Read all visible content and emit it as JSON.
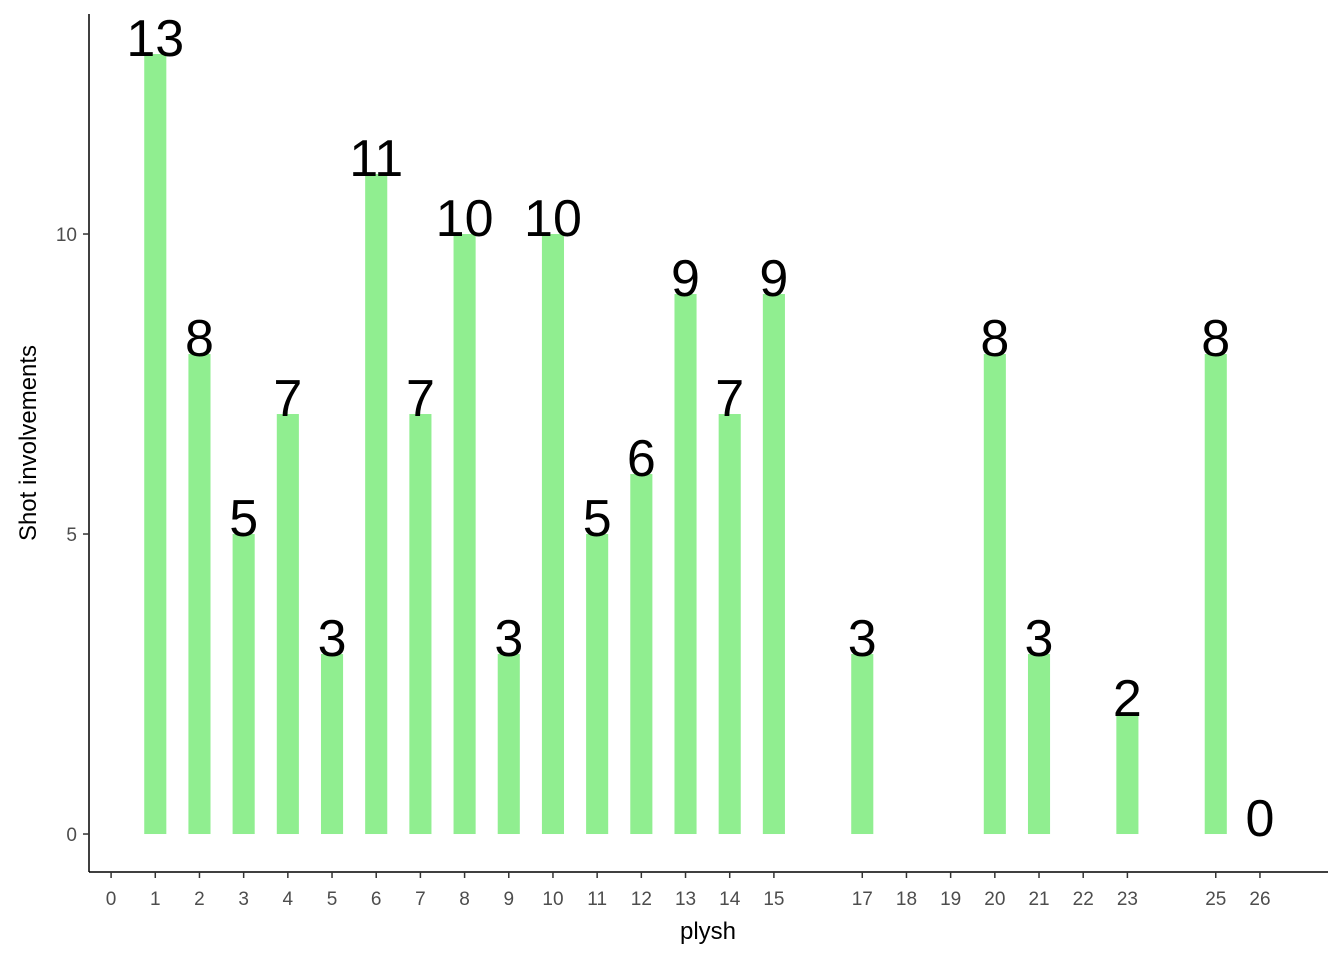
{
  "chart_data": {
    "type": "bar",
    "x_label": "plysh",
    "y_label": "Shot involvements",
    "x": [
      1,
      2,
      3,
      4,
      5,
      6,
      7,
      8,
      9,
      10,
      11,
      12,
      13,
      14,
      15,
      17,
      20,
      21,
      23,
      25,
      26
    ],
    "values": [
      13,
      8,
      5,
      7,
      3,
      11,
      7,
      10,
      3,
      10,
      5,
      6,
      9,
      7,
      9,
      3,
      8,
      3,
      2,
      8,
      0
    ],
    "color": "#90ee90",
    "xlim": [
      -0.5,
      27.54
    ],
    "xticks": [
      0,
      1,
      2,
      3,
      4,
      5,
      6,
      7,
      8,
      9,
      10,
      11,
      12,
      13,
      14,
      15,
      17,
      18,
      19,
      20,
      21,
      22,
      23,
      25,
      26
    ],
    "ylim": [
      -0.633,
      13.667
    ],
    "yticks": [
      0,
      5,
      10
    ],
    "grid": false
  }
}
